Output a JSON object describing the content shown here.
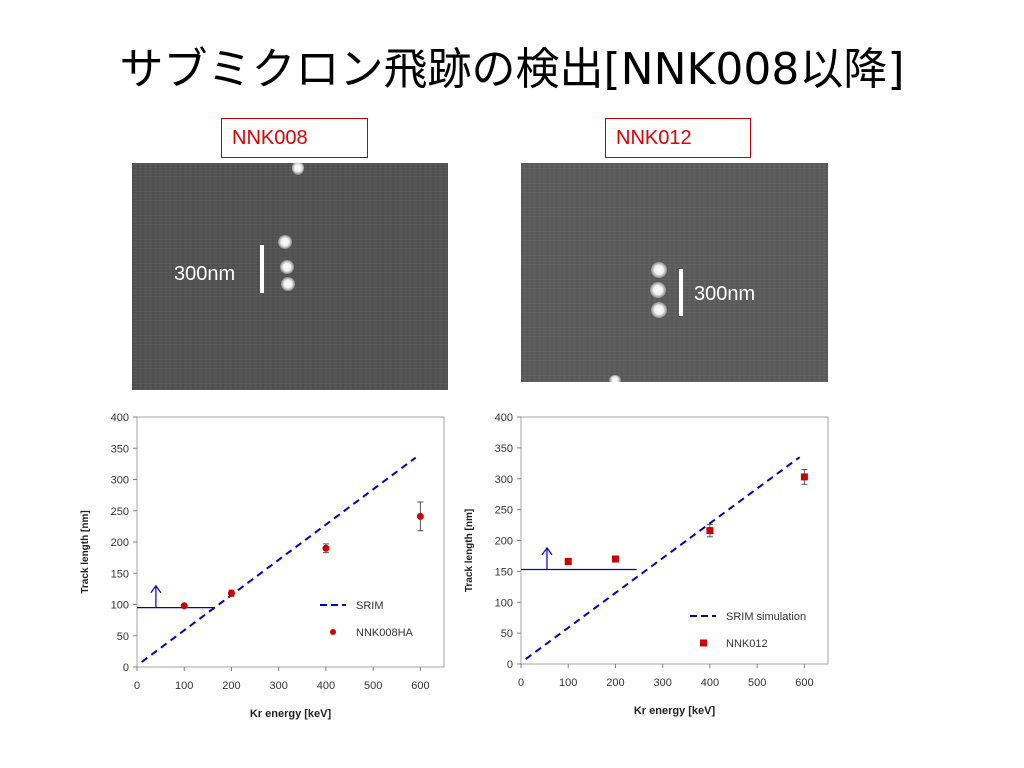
{
  "slide": {
    "title": "サブミクロン飛跡の検出[NNK008以降]"
  },
  "panels": [
    {
      "label": "NNK008",
      "scale_label": "300nm"
    },
    {
      "label": "NNK012",
      "scale_label": "300nm"
    }
  ],
  "chart_data": [
    {
      "type": "scatter",
      "xlabel": "Kr energy [keV]",
      "ylabel": "Track length [nm]",
      "xlim": [
        0,
        650
      ],
      "ylim": [
        0,
        400
      ],
      "xticks": [
        0,
        100,
        200,
        300,
        400,
        500,
        600
      ],
      "yticks": [
        0,
        50,
        100,
        150,
        200,
        250,
        300,
        350,
        400
      ],
      "grid": false,
      "legend_position": "bottom-right",
      "series": [
        {
          "name": "SRIM",
          "kind": "dashed-line",
          "color": "#0000cc",
          "x": [
            10,
            590
          ],
          "y": [
            8,
            335
          ]
        },
        {
          "name": "NNK008HA",
          "kind": "points",
          "marker": "circle",
          "color": "#cc0000",
          "x": [
            100,
            200,
            400,
            600
          ],
          "y": [
            98,
            118,
            190,
            241
          ],
          "err": [
            2,
            5,
            7,
            23
          ]
        }
      ],
      "annotations": [
        {
          "kind": "lower-limit-line",
          "color": "#0000cc",
          "x": [
            0,
            165
          ],
          "y": 95
        },
        {
          "kind": "up-arrow",
          "color": "#0000cc",
          "x": 40,
          "y_from": 95,
          "y_to": 130
        }
      ]
    },
    {
      "type": "scatter",
      "xlabel": "Kr energy [keV]",
      "ylabel": "Track length [nm]",
      "xlim": [
        0,
        650
      ],
      "ylim": [
        0,
        400
      ],
      "xticks": [
        0,
        100,
        200,
        300,
        400,
        500,
        600
      ],
      "yticks": [
        0,
        50,
        100,
        150,
        200,
        250,
        300,
        350,
        400
      ],
      "grid": false,
      "legend_position": "bottom-right",
      "series": [
        {
          "name": "SRIM simulation",
          "kind": "dashed-line",
          "color": "#0000cc",
          "x": [
            10,
            590
          ],
          "y": [
            8,
            335
          ]
        },
        {
          "name": "NNK012",
          "kind": "points",
          "marker": "square",
          "color": "#cc0000",
          "x": [
            100,
            200,
            400,
            600
          ],
          "y": [
            166,
            170,
            216,
            303
          ],
          "err": [
            5,
            3,
            10,
            12
          ]
        }
      ],
      "annotations": [
        {
          "kind": "lower-limit-line",
          "color": "#0000cc",
          "x": [
            0,
            245
          ],
          "y": 153
        },
        {
          "kind": "up-arrow",
          "color": "#0000cc",
          "x": 55,
          "y_from": 153,
          "y_to": 188
        }
      ]
    }
  ]
}
